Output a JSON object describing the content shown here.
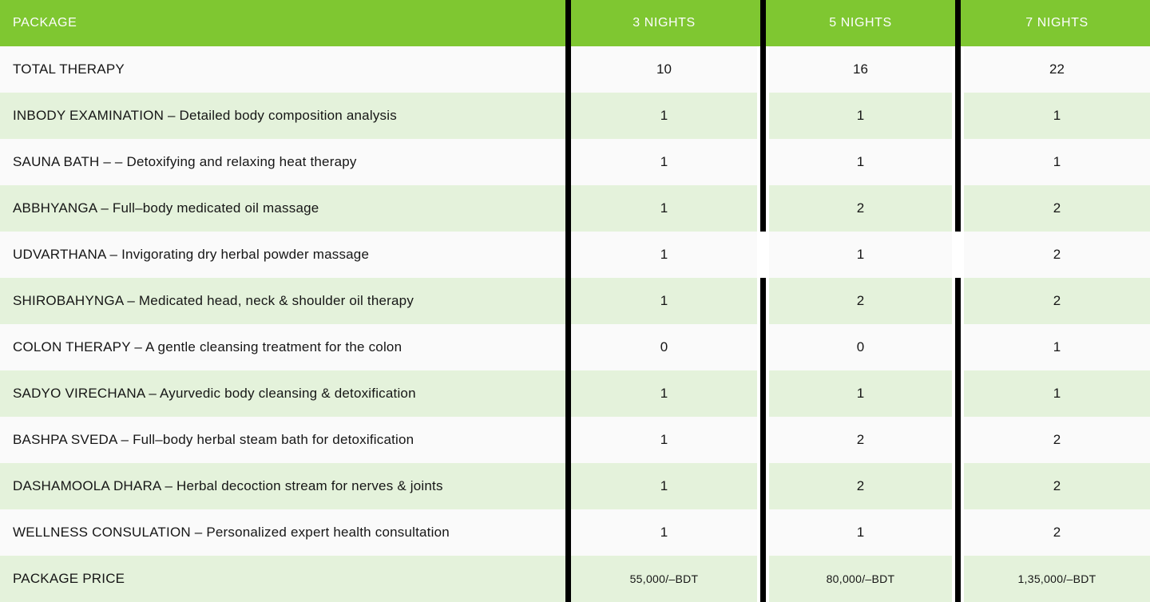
{
  "colors": {
    "header-green": "#7FC731",
    "row-green": "#E4F2DB",
    "row-white": "#FAFAFA",
    "gutter": "#FFFFFF",
    "bar-black": "#000000",
    "header-text": "#FDFDFD",
    "body-text": "#161616",
    "page-bg": "#FFFFFF"
  },
  "table": {
    "header": {
      "package_label": "PACKAGE",
      "columns": [
        "3 NIGHTS",
        "5 NIGHTS",
        "7 NIGHTS"
      ]
    },
    "rows": [
      {
        "label": "TOTAL THERAPY",
        "values": [
          "10",
          "16",
          "22"
        ]
      },
      {
        "label": "INBODY EXAMINATION – Detailed body composition analysis",
        "values": [
          "1",
          "1",
          "1"
        ]
      },
      {
        "label": "SAUNA BATH – – Detoxifying and relaxing heat therapy",
        "values": [
          "1",
          "1",
          "1"
        ]
      },
      {
        "label": "ABBHYANGA – Full–body medicated oil massage",
        "values": [
          "1",
          "2",
          "2"
        ]
      },
      {
        "label": "UDVARTHANA – Invigorating dry herbal powder massage",
        "values": [
          "1",
          "1",
          "2"
        ]
      },
      {
        "label": "SHIROBAHYNGA – Medicated head, neck & shoulder oil therapy",
        "values": [
          "1",
          "2",
          "2"
        ]
      },
      {
        "label": "COLON THERAPY – A gentle cleansing treatment for the colon",
        "values": [
          "0",
          "0",
          "1"
        ]
      },
      {
        "label": "SADYO VIRECHANA – Ayurvedic body cleansing & detoxification",
        "values": [
          "1",
          "1",
          "1"
        ]
      },
      {
        "label": "BASHPA SVEDA – Full–body herbal steam bath for detoxification",
        "values": [
          "1",
          "2",
          "2"
        ]
      },
      {
        "label": "DASHAMOOLA DHARA – Herbal decoction stream for nerves & joints",
        "values": [
          "1",
          "2",
          "2"
        ]
      },
      {
        "label": "WELLNESS CONSULATION – Personalized expert health consultation",
        "values": [
          "1",
          "1",
          "2"
        ]
      }
    ],
    "footer": {
      "label": "PACKAGE PRICE",
      "values": [
        "55,000/–BDT",
        "80,000/–BDT",
        "1,35,000/–BDT"
      ]
    }
  }
}
